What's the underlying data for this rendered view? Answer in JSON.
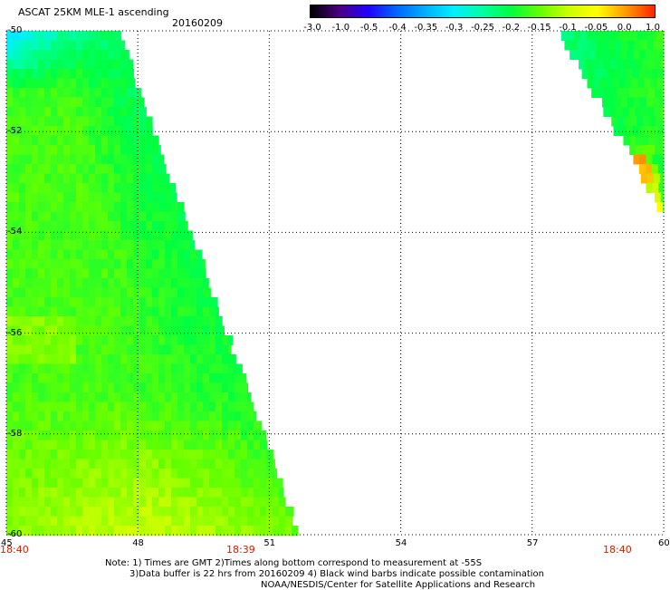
{
  "header": {
    "title": "ASCAT 25KM MLE-1 ascending",
    "date": "20160209"
  },
  "colorbar": {
    "labels": [
      "-3.0",
      "-1.0",
      "-0.5",
      "-0.4",
      "-0.35",
      "-0.3",
      "-0.25",
      "-0.2",
      "-0.15",
      "-0.1",
      "-0.05",
      "0.0",
      "1.0"
    ],
    "colors": [
      "#000000",
      "#4a0080",
      "#2200ff",
      "#0066ff",
      "#00b0ff",
      "#00f0ff",
      "#00ffa0",
      "#00ff40",
      "#66ff00",
      "#ccff00",
      "#ffff00",
      "#ff9900",
      "#ff2200"
    ]
  },
  "axes": {
    "lat_labels": [
      "-50",
      "-52",
      "-54",
      "-56",
      "-58",
      "-60"
    ],
    "lon_labels": [
      "45",
      "48",
      "51",
      "54",
      "57",
      "60"
    ],
    "lat_range": [
      -60,
      -50
    ],
    "lon_range": [
      45,
      60
    ]
  },
  "times": {
    "left": "18:40",
    "middle": "18:39",
    "right": "18:40"
  },
  "notes": {
    "line1": "Note: 1) Times are GMT 2)Times along bottom correspond to measurement at -55S",
    "line2": "3)Data buffer is 22 hrs from 20160209 4) Black wind barbs indicate possible contamination",
    "line3": "NOAA/NESDIS/Center for Satellite Applications and Research"
  }
}
